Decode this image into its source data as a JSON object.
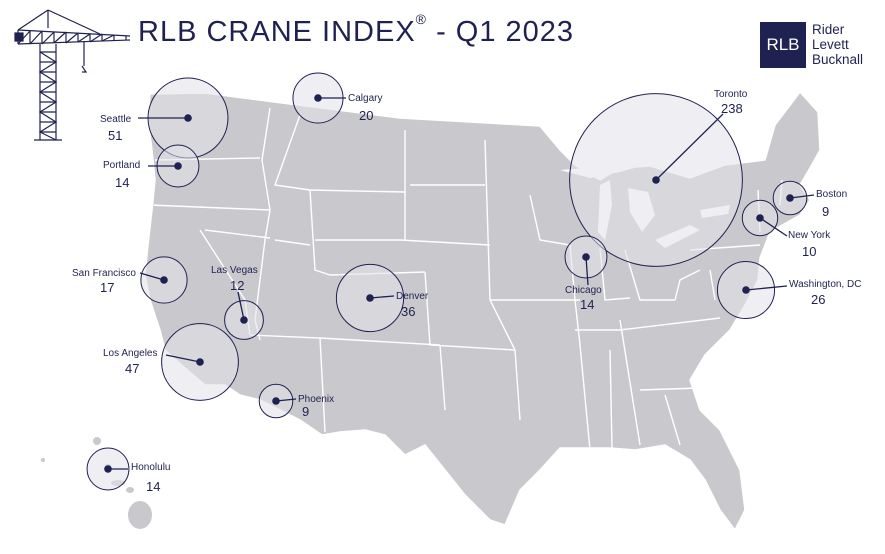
{
  "title": {
    "text": "RLB CRANE INDEX",
    "registered_mark": "®",
    "period": "- Q1 2023"
  },
  "logo": {
    "initials": "RLB",
    "line1": "Rider",
    "line2": "Levett",
    "line3": "Bucknall"
  },
  "colors": {
    "navy": "#1f2150",
    "land": "#c9c9cd",
    "borders": "#ffffff",
    "bubble_fill": "#e1e1ea"
  },
  "icons": {
    "crane": "tower-crane-icon"
  },
  "cities": [
    {
      "name": "Seattle",
      "count": "51"
    },
    {
      "name": "Calgary",
      "count": "20"
    },
    {
      "name": "Toronto",
      "count": "238"
    },
    {
      "name": "Portland",
      "count": "14"
    },
    {
      "name": "Boston",
      "count": "9"
    },
    {
      "name": "New York",
      "count": "10"
    },
    {
      "name": "San Francisco",
      "count": "17"
    },
    {
      "name": "Las Vegas",
      "count": "12"
    },
    {
      "name": "Denver",
      "count": "36"
    },
    {
      "name": "Chicago",
      "count": "14"
    },
    {
      "name": "Washington, DC",
      "count": "26"
    },
    {
      "name": "Los Angeles",
      "count": "47"
    },
    {
      "name": "Phoenix",
      "count": "9"
    },
    {
      "name": "Honolulu",
      "count": "14"
    }
  ]
}
